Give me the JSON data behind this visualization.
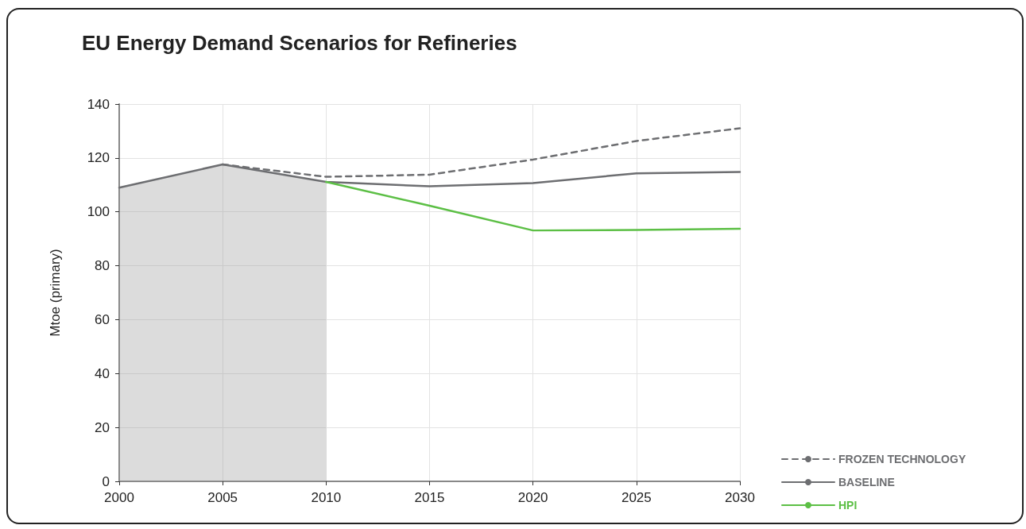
{
  "chart_data": {
    "type": "line",
    "title": "EU Energy Demand Scenarios for Refineries",
    "ylabel": "Mtoe (primary)",
    "xlim": [
      2000,
      2030
    ],
    "xticks": [
      2000,
      2005,
      2010,
      2015,
      2020,
      2025,
      2030
    ],
    "ylim": [
      0,
      140
    ],
    "yticks": [
      0,
      20,
      40,
      60,
      80,
      100,
      120,
      140
    ],
    "grid": true,
    "legend": "bottom right",
    "marker": "none",
    "series": [
      {
        "type": "area",
        "color": "#9a9a9a",
        "x": [
          2000,
          2005,
          2010
        ],
        "values": [
          109,
          117.6,
          111.1
        ]
      },
      {
        "name": "FROZEN TECHNOLOGY",
        "color": "#6d6e71",
        "line_style": "dashed",
        "x": [
          2005,
          2010,
          2015,
          2020,
          2025,
          2030
        ],
        "values": [
          117.6,
          113,
          113.8,
          119.4,
          126.3,
          131
        ]
      },
      {
        "name": "BASELINE",
        "color": "#6d6e71",
        "line_style": "solid",
        "x": [
          2000,
          2005,
          2010,
          2015,
          2020,
          2025,
          2030
        ],
        "values": [
          109,
          117.6,
          111.1,
          109.5,
          110.7,
          114.3,
          114.8
        ]
      },
      {
        "name": "HPI",
        "color": "#5cbf45",
        "line_style": "solid",
        "x": [
          2010,
          2015,
          2020,
          2025,
          2030
        ],
        "values": [
          111.1,
          102.3,
          93.1,
          93.3,
          93.7
        ]
      }
    ]
  }
}
